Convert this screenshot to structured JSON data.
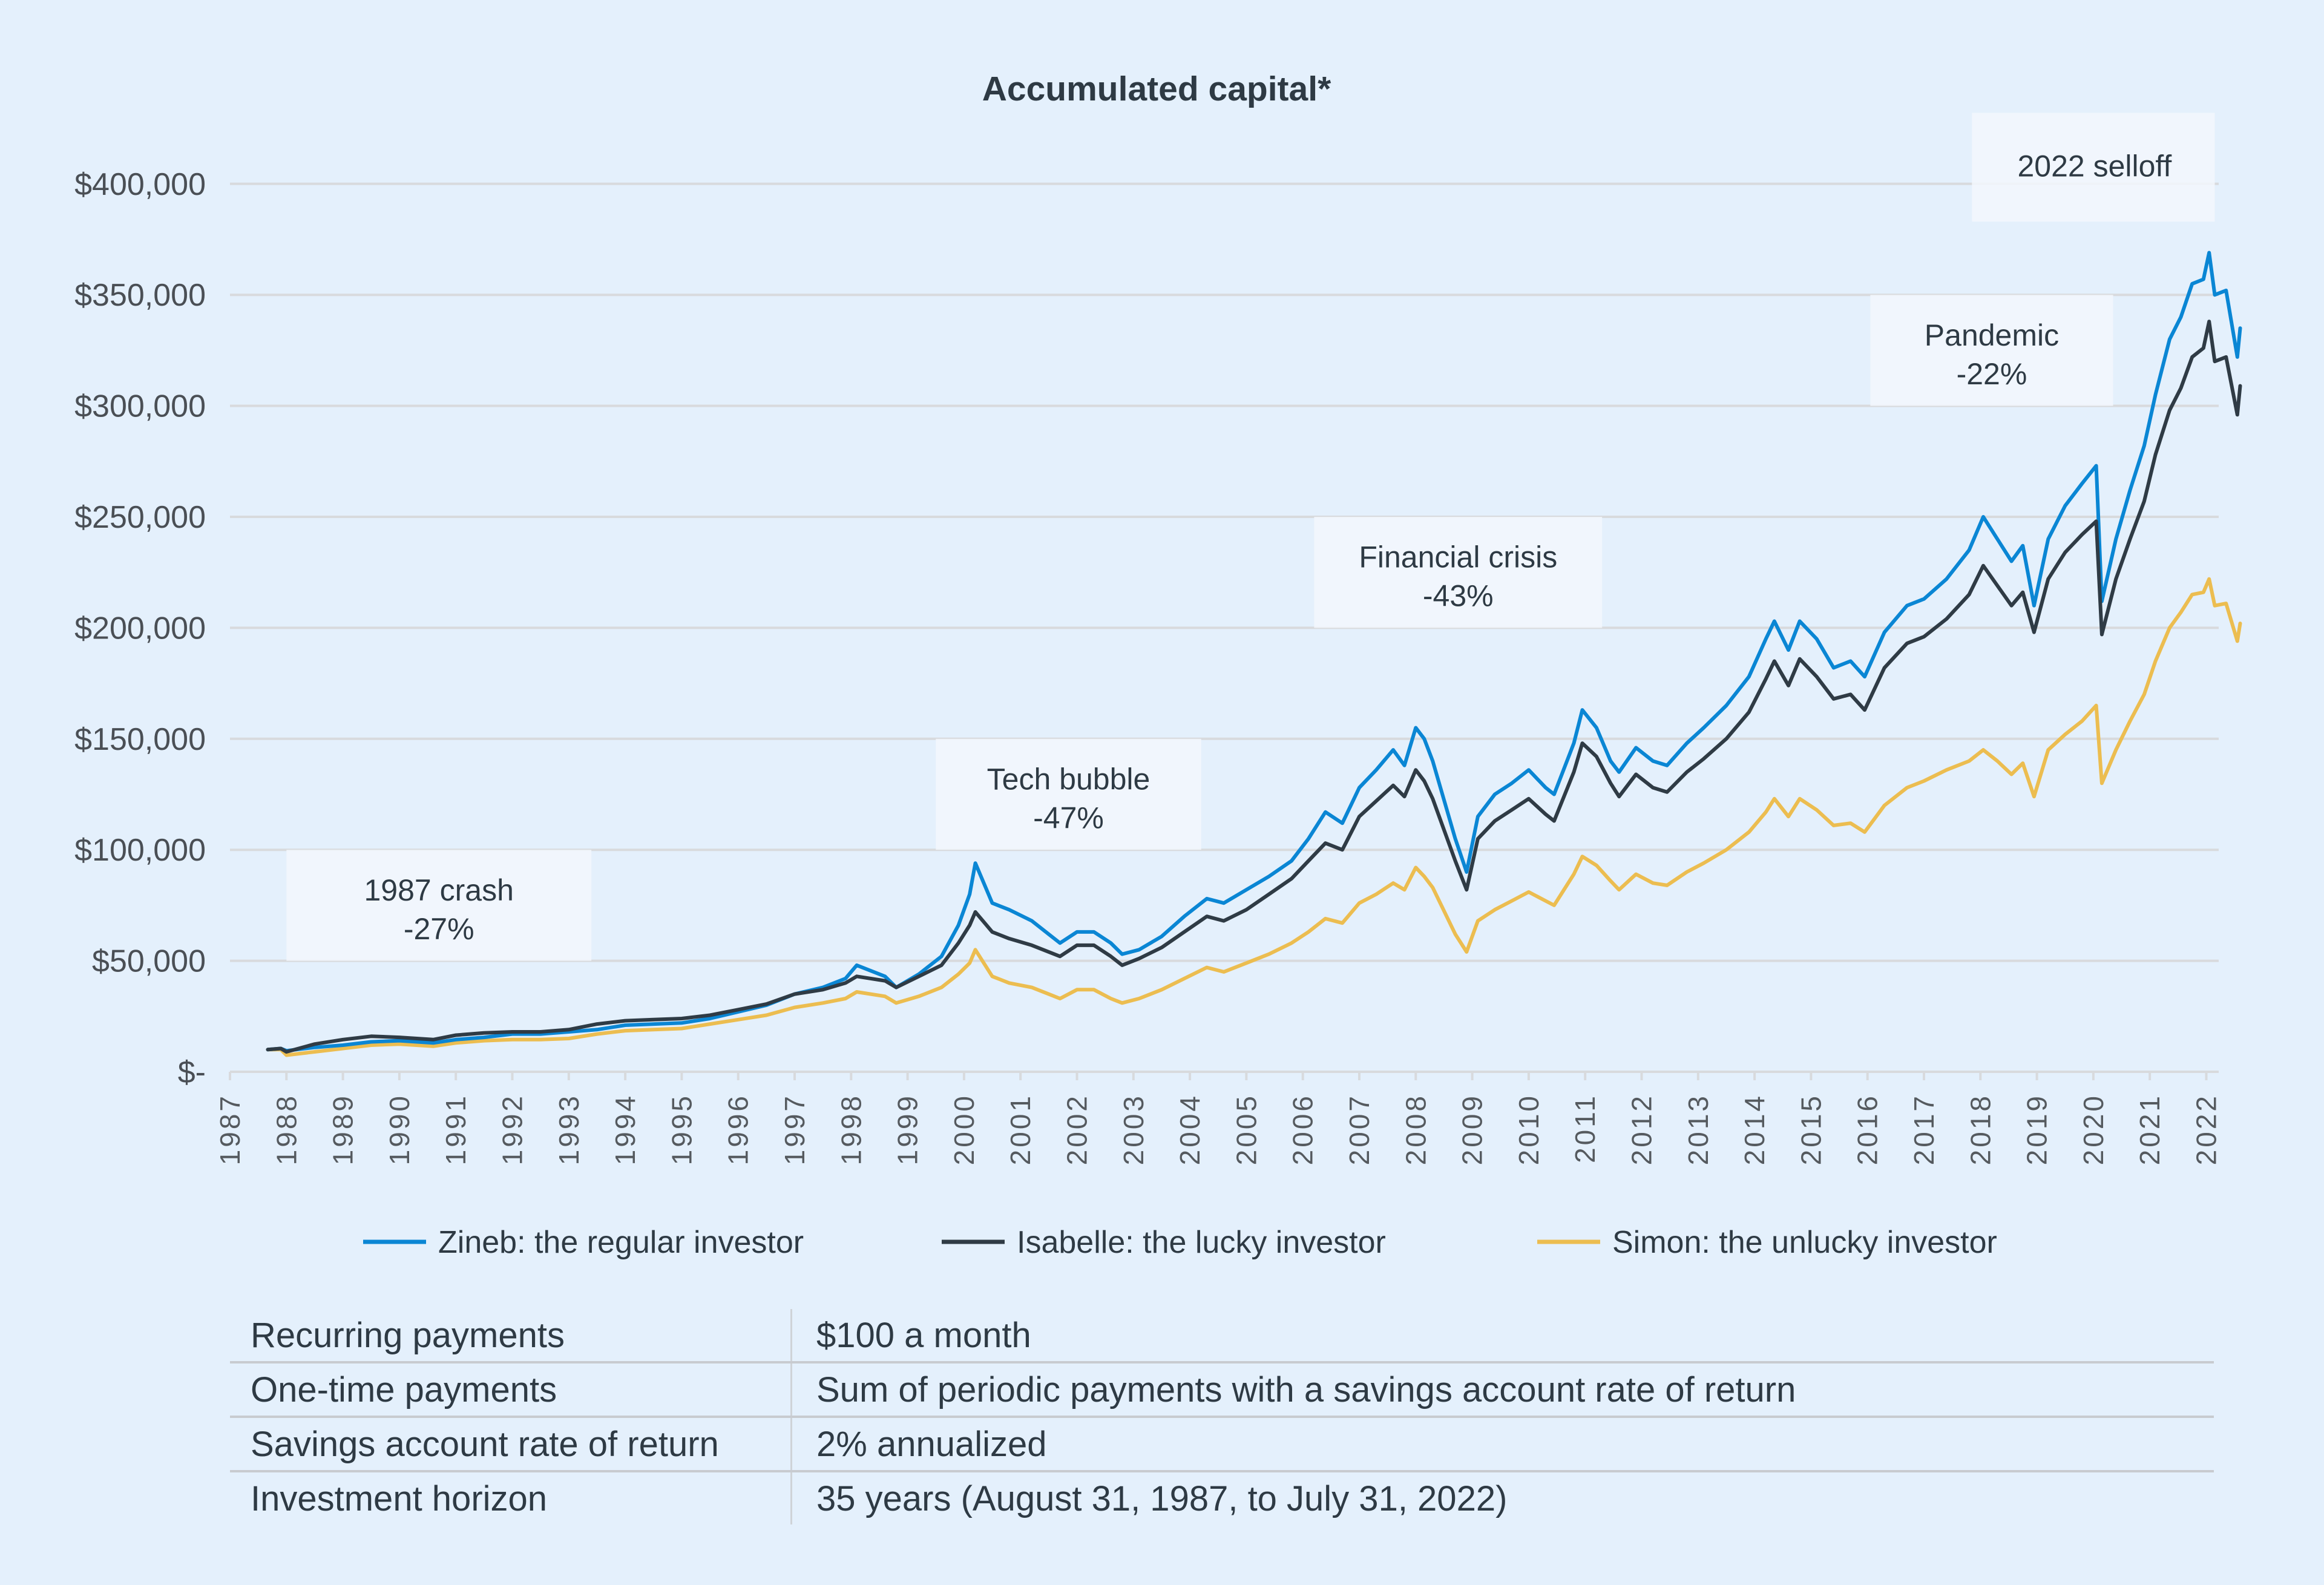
{
  "colors": {
    "background": "#e4f0fc",
    "grid": "#d8dadd",
    "annotation_box": "#f3f7fd",
    "text": "#2e3a44",
    "zineb": "#0a86d4",
    "isabelle": "#2f3b45",
    "simon": "#ecbd50"
  },
  "chart_data": {
    "type": "line",
    "title": "Accumulated capital*",
    "xlabel": "",
    "ylabel": "",
    "xlim": [
      1987,
      2022.6
    ],
    "ylim": [
      0,
      400000
    ],
    "grid": true,
    "legend_position": "bottom",
    "y_ticks": [
      0,
      50000,
      100000,
      150000,
      200000,
      250000,
      300000,
      350000,
      400000
    ],
    "y_tick_labels": [
      "$-",
      "$50,000",
      "$100,000",
      "$150,000",
      "$200,000",
      "$250,000",
      "$300,000",
      "$350,000",
      "$400,000"
    ],
    "x_tick_labels": [
      "1987",
      "1988",
      "1989",
      "1990",
      "1991",
      "1992",
      "1993",
      "1994",
      "1995",
      "1996",
      "1997",
      "1998",
      "1999",
      "2000",
      "2001",
      "2002",
      "2003",
      "2004",
      "2005",
      "2006",
      "2007",
      "2008",
      "2009",
      "2010",
      "2011",
      "2012",
      "2013",
      "2014",
      "2015",
      "2016",
      "2017",
      "2018",
      "2019",
      "2020",
      "2021",
      "2022"
    ],
    "annotations": [
      {
        "label": "1987 crash",
        "drawdown": "-27%",
        "x_range": [
          1988.0,
          1993.4
        ],
        "y_range": [
          50000,
          100000
        ]
      },
      {
        "label": "Tech bubble",
        "drawdown": "-47%",
        "x_range": [
          1999.5,
          2004.2
        ],
        "y_range": [
          100000,
          150000
        ]
      },
      {
        "label": "Financial crisis",
        "drawdown": "-43%",
        "x_range": [
          2006.2,
          2011.3
        ],
        "y_range": [
          200000,
          250000
        ]
      },
      {
        "label": "Pandemic",
        "drawdown": "-22%",
        "x_range": [
          2016.05,
          2020.35
        ],
        "y_range": [
          300000,
          350000
        ]
      },
      {
        "label": "2022 selloff",
        "drawdown": "",
        "x_range": [
          2017.85,
          2022.15
        ],
        "y_range": [
          383000,
          432000
        ]
      }
    ],
    "series": [
      {
        "name": "Zineb: the regular investor",
        "color_key": "zineb",
        "x": [
          1987.67,
          1987.9,
          1988.0,
          1988.5,
          1989.0,
          1989.5,
          1990.0,
          1990.6,
          1991.0,
          1991.5,
          1992.0,
          1992.5,
          1993.0,
          1993.5,
          1994.0,
          1994.5,
          1995.0,
          1995.5,
          1996.0,
          1996.5,
          1997.0,
          1997.5,
          1997.9,
          1998.1,
          1998.6,
          1998.8,
          1999.2,
          1999.6,
          1999.9,
          2000.1,
          2000.2,
          2000.5,
          2000.8,
          2001.2,
          2001.5,
          2001.7,
          2002.0,
          2002.3,
          2002.6,
          2002.8,
          2003.1,
          2003.5,
          2003.9,
          2004.3,
          2004.6,
          2005.0,
          2005.4,
          2005.8,
          2006.1,
          2006.4,
          2006.7,
          2007.0,
          2007.3,
          2007.6,
          2007.8,
          2008.0,
          2008.15,
          2008.3,
          2008.7,
          2008.9,
          2009.1,
          2009.4,
          2009.7,
          2010.0,
          2010.3,
          2010.45,
          2010.8,
          2010.95,
          2011.2,
          2011.45,
          2011.6,
          2011.9,
          2012.2,
          2012.45,
          2012.8,
          2013.1,
          2013.5,
          2013.9,
          2014.2,
          2014.35,
          2014.6,
          2014.8,
          2015.1,
          2015.4,
          2015.7,
          2015.95,
          2016.3,
          2016.7,
          2017.0,
          2017.4,
          2017.8,
          2018.05,
          2018.3,
          2018.55,
          2018.75,
          2018.95,
          2019.2,
          2019.5,
          2019.8,
          2020.05,
          2020.15,
          2020.4,
          2020.65,
          2020.9,
          2021.1,
          2021.35,
          2021.55,
          2021.75,
          2021.95,
          2022.05,
          2022.15,
          2022.35,
          2022.55,
          2022.6
        ],
        "y": [
          10000,
          10500,
          9500,
          11000,
          12000,
          13500,
          14000,
          13000,
          14500,
          15500,
          17000,
          17000,
          18000,
          19000,
          21000,
          21500,
          22000,
          24000,
          27000,
          30000,
          35000,
          38000,
          42000,
          48000,
          43000,
          38000,
          44000,
          52000,
          66000,
          80000,
          94000,
          76000,
          73000,
          68000,
          62000,
          58000,
          63000,
          63000,
          58000,
          53000,
          55000,
          61000,
          70000,
          78000,
          76000,
          82000,
          88000,
          95000,
          105000,
          117000,
          112000,
          128000,
          136000,
          145000,
          138000,
          155000,
          150000,
          140000,
          105000,
          90000,
          115000,
          125000,
          130000,
          136000,
          128000,
          125000,
          148000,
          163000,
          155000,
          140000,
          135000,
          146000,
          140000,
          138000,
          148000,
          155000,
          165000,
          178000,
          195000,
          203000,
          190000,
          203000,
          195000,
          182000,
          185000,
          178000,
          198000,
          210000,
          213000,
          222000,
          235000,
          250000,
          240000,
          230000,
          237000,
          210000,
          240000,
          255000,
          265000,
          273000,
          212000,
          240000,
          262000,
          282000,
          305000,
          330000,
          340000,
          355000,
          357000,
          369000,
          350000,
          352000,
          322000,
          335000
        ]
      },
      {
        "name": "Isabelle: the lucky investor",
        "color_key": "isabelle",
        "x": [
          1987.67,
          1987.9,
          1988.0,
          1988.5,
          1989.0,
          1989.5,
          1990.0,
          1990.6,
          1991.0,
          1991.5,
          1992.0,
          1992.5,
          1993.0,
          1993.5,
          1994.0,
          1994.5,
          1995.0,
          1995.5,
          1996.0,
          1996.5,
          1997.0,
          1997.5,
          1997.9,
          1998.1,
          1998.6,
          1998.8,
          1999.2,
          1999.6,
          1999.9,
          2000.1,
          2000.2,
          2000.5,
          2000.8,
          2001.2,
          2001.5,
          2001.7,
          2002.0,
          2002.3,
          2002.6,
          2002.8,
          2003.1,
          2003.5,
          2003.9,
          2004.3,
          2004.6,
          2005.0,
          2005.4,
          2005.8,
          2006.1,
          2006.4,
          2006.7,
          2007.0,
          2007.3,
          2007.6,
          2007.8,
          2008.0,
          2008.15,
          2008.3,
          2008.7,
          2008.9,
          2009.1,
          2009.4,
          2009.7,
          2010.0,
          2010.3,
          2010.45,
          2010.8,
          2010.95,
          2011.2,
          2011.45,
          2011.6,
          2011.9,
          2012.2,
          2012.45,
          2012.8,
          2013.1,
          2013.5,
          2013.9,
          2014.2,
          2014.35,
          2014.6,
          2014.8,
          2015.1,
          2015.4,
          2015.7,
          2015.95,
          2016.3,
          2016.7,
          2017.0,
          2017.4,
          2017.8,
          2018.05,
          2018.3,
          2018.55,
          2018.75,
          2018.95,
          2019.2,
          2019.5,
          2019.8,
          2020.05,
          2020.15,
          2020.4,
          2020.65,
          2020.9,
          2021.1,
          2021.35,
          2021.55,
          2021.75,
          2021.95,
          2022.05,
          2022.15,
          2022.35,
          2022.55,
          2022.6
        ],
        "y": [
          10000,
          10500,
          9000,
          12500,
          14500,
          16000,
          15500,
          14500,
          16500,
          17500,
          18000,
          18000,
          19000,
          21500,
          23000,
          23500,
          24000,
          25500,
          28000,
          30500,
          35000,
          37000,
          40000,
          43000,
          41000,
          38000,
          43000,
          48000,
          58000,
          66000,
          72000,
          63000,
          60000,
          57000,
          54000,
          52000,
          57000,
          57000,
          52000,
          48000,
          51000,
          56000,
          63000,
          70000,
          68000,
          73000,
          80000,
          87000,
          95000,
          103000,
          100000,
          115000,
          122000,
          129000,
          124000,
          136000,
          131000,
          123000,
          95000,
          82000,
          105000,
          113000,
          118000,
          123000,
          116000,
          113000,
          135000,
          148000,
          142000,
          130000,
          124000,
          134000,
          128000,
          126000,
          135000,
          141000,
          150000,
          162000,
          177000,
          185000,
          174000,
          186000,
          178000,
          168000,
          170000,
          163000,
          182000,
          193000,
          196000,
          204000,
          215000,
          228000,
          219000,
          210000,
          216000,
          198000,
          222000,
          234000,
          242000,
          248000,
          197000,
          222000,
          240000,
          257000,
          278000,
          298000,
          308000,
          322000,
          326000,
          338000,
          320000,
          322000,
          296000,
          309000
        ]
      },
      {
        "name": "Simon: the unlucky investor",
        "color_key": "simon",
        "x": [
          1987.67,
          1987.9,
          1988.0,
          1988.5,
          1989.0,
          1989.5,
          1990.0,
          1990.6,
          1991.0,
          1991.5,
          1992.0,
          1992.5,
          1993.0,
          1993.5,
          1994.0,
          1994.5,
          1995.0,
          1995.5,
          1996.0,
          1996.5,
          1997.0,
          1997.5,
          1997.9,
          1998.1,
          1998.6,
          1998.8,
          1999.2,
          1999.6,
          1999.9,
          2000.1,
          2000.2,
          2000.5,
          2000.8,
          2001.2,
          2001.5,
          2001.7,
          2002.0,
          2002.3,
          2002.6,
          2002.8,
          2003.1,
          2003.5,
          2003.9,
          2004.3,
          2004.6,
          2005.0,
          2005.4,
          2005.8,
          2006.1,
          2006.4,
          2006.7,
          2007.0,
          2007.3,
          2007.6,
          2007.8,
          2008.0,
          2008.15,
          2008.3,
          2008.7,
          2008.9,
          2009.1,
          2009.4,
          2009.7,
          2010.0,
          2010.3,
          2010.45,
          2010.8,
          2010.95,
          2011.2,
          2011.45,
          2011.6,
          2011.9,
          2012.2,
          2012.45,
          2012.8,
          2013.1,
          2013.5,
          2013.9,
          2014.2,
          2014.35,
          2014.6,
          2014.8,
          2015.1,
          2015.4,
          2015.7,
          2015.95,
          2016.3,
          2016.7,
          2017.0,
          2017.4,
          2017.8,
          2018.05,
          2018.3,
          2018.55,
          2018.75,
          2018.95,
          2019.2,
          2019.5,
          2019.8,
          2020.05,
          2020.15,
          2020.4,
          2020.65,
          2020.9,
          2021.1,
          2021.35,
          2021.55,
          2021.75,
          2021.95,
          2022.05,
          2022.15,
          2022.35,
          2022.55,
          2022.6
        ],
        "y": [
          10000,
          10000,
          7500,
          9000,
          10500,
          12000,
          12500,
          11500,
          13000,
          14000,
          14500,
          14500,
          15000,
          17000,
          18500,
          19000,
          19500,
          21500,
          23500,
          25500,
          29000,
          31000,
          33000,
          36000,
          34000,
          31000,
          34000,
          38000,
          44000,
          49000,
          55000,
          43000,
          40000,
          38000,
          35000,
          33000,
          37000,
          37000,
          33000,
          31000,
          33000,
          37000,
          42000,
          47000,
          45000,
          49000,
          53000,
          58000,
          63000,
          69000,
          67000,
          76000,
          80000,
          85000,
          82000,
          92000,
          88000,
          83000,
          62000,
          54000,
          68000,
          73000,
          77000,
          81000,
          77000,
          75000,
          89000,
          97000,
          93000,
          86000,
          82000,
          89000,
          85000,
          84000,
          90000,
          94000,
          100000,
          108000,
          117000,
          123000,
          115000,
          123000,
          118000,
          111000,
          112000,
          108000,
          120000,
          128000,
          131000,
          136000,
          140000,
          145000,
          140000,
          134000,
          139000,
          124000,
          145000,
          152000,
          158000,
          165000,
          130000,
          145000,
          158000,
          170000,
          185000,
          200000,
          207000,
          215000,
          216000,
          222000,
          210000,
          211000,
          194000,
          202000
        ]
      }
    ]
  },
  "table": {
    "rows": [
      {
        "label": "Recurring payments",
        "value": "$100 a month"
      },
      {
        "label": "One-time payments",
        "value": "Sum of periodic payments with a savings account rate of return"
      },
      {
        "label": "Savings account rate of return",
        "value": "2% annualized"
      },
      {
        "label": "Investment horizon",
        "value": "35 years (August 31, 1987, to July 31, 2022)"
      }
    ]
  }
}
